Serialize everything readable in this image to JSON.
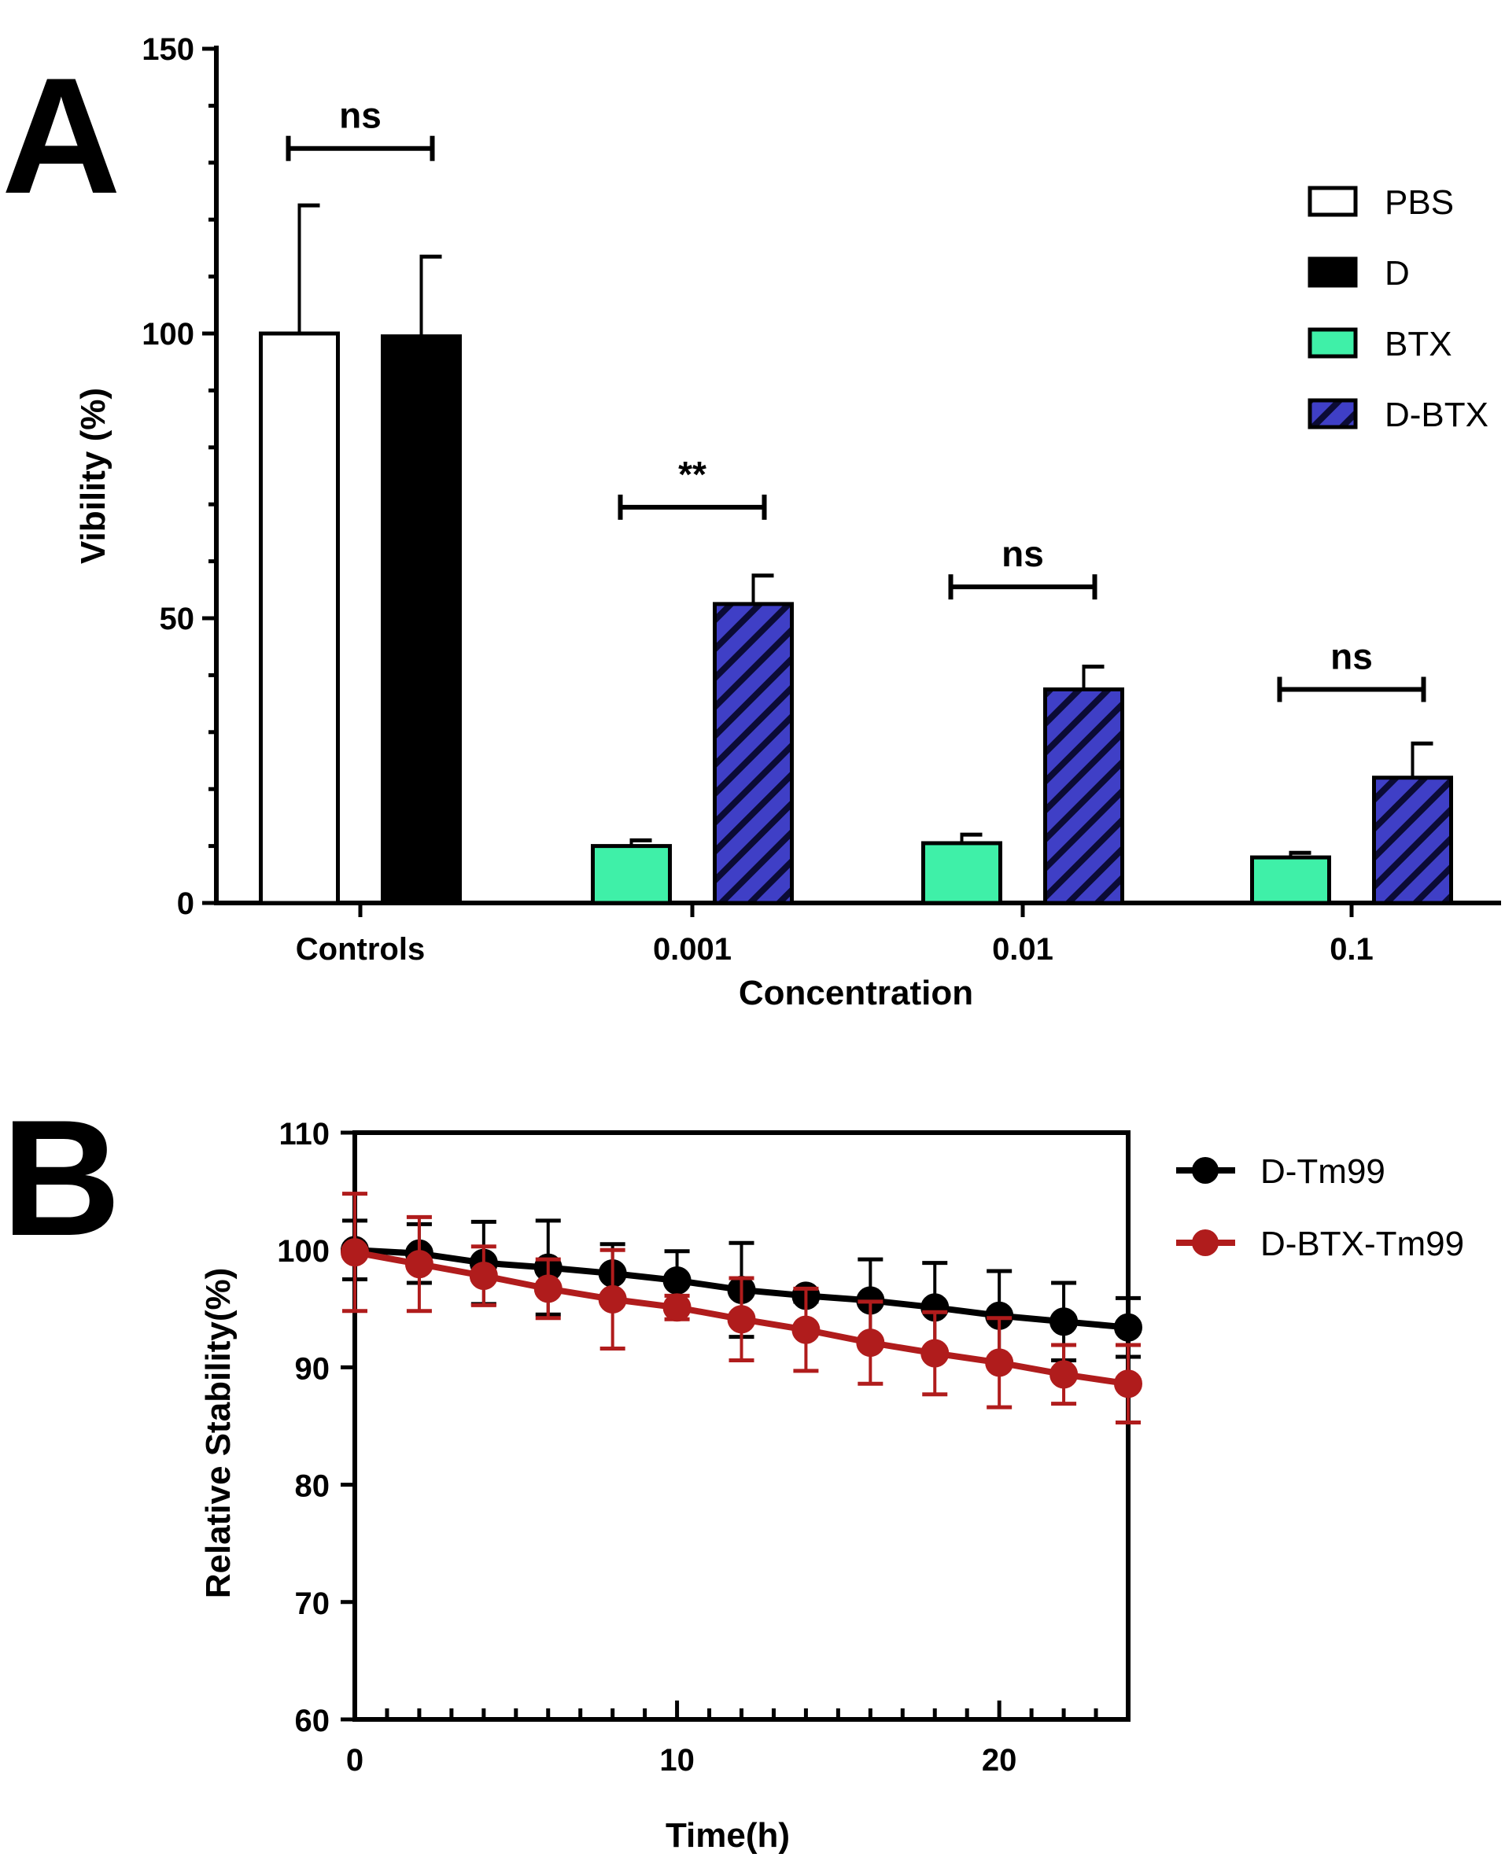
{
  "panels": {
    "a": {
      "letter": "A"
    },
    "b": {
      "letter": "B"
    }
  },
  "chart_data": [
    {
      "id": "panel-a",
      "type": "bar",
      "title": "",
      "xlabel": "Concentration",
      "ylabel": "Vibility (%)",
      "ylim": [
        0,
        150
      ],
      "yticks": [
        0,
        50,
        100,
        150
      ],
      "grid": false,
      "legend_position": "top-right",
      "groups": [
        {
          "label": "Controls",
          "bars": [
            {
              "series": "PBS",
              "value": 100,
              "error": 22.5
            },
            {
              "series": "D",
              "value": 99.5,
              "error": 14
            }
          ]
        },
        {
          "label": "0.001",
          "bars": [
            {
              "series": "BTX",
              "value": 10,
              "error": 1
            },
            {
              "series": "D-BTX",
              "value": 52.5,
              "error": 5
            }
          ]
        },
        {
          "label": "0.01",
          "bars": [
            {
              "series": "BTX",
              "value": 10.5,
              "error": 1.5
            },
            {
              "series": "D-BTX",
              "value": 37.5,
              "error": 4
            }
          ]
        },
        {
          "label": "0.1",
          "bars": [
            {
              "series": "BTX",
              "value": 8,
              "error": 0.8
            },
            {
              "series": "D-BTX",
              "value": 22,
              "error": 6
            }
          ]
        }
      ],
      "series": [
        {
          "name": "PBS",
          "fill": "#ffffff",
          "pattern": "none"
        },
        {
          "name": "D",
          "fill": "#000000",
          "pattern": "none"
        },
        {
          "name": "BTX",
          "fill": "#3ff0a8",
          "pattern": "none"
        },
        {
          "name": "D-BTX",
          "fill": "#3f3fc6",
          "pattern": "diagonal-stripes"
        }
      ],
      "significance": [
        {
          "group": "Controls",
          "label": "ns",
          "y": 132.5
        },
        {
          "group": "0.001",
          "label": "**",
          "y": 69.5
        },
        {
          "group": "0.01",
          "label": "ns",
          "y": 55.5
        },
        {
          "group": "0.1",
          "label": "ns",
          "y": 37.5
        }
      ]
    },
    {
      "id": "panel-b",
      "type": "line",
      "title": "",
      "xlabel": "Time(h)",
      "ylabel": "Relative Stability(%)",
      "xlim": [
        0,
        24
      ],
      "ylim": [
        60,
        110
      ],
      "xticks": [
        0,
        10,
        20
      ],
      "yticks": [
        60,
        70,
        80,
        90,
        100,
        110
      ],
      "grid": false,
      "legend_position": "right",
      "x": [
        0,
        2,
        4,
        6,
        8,
        10,
        12,
        14,
        16,
        18,
        20,
        22,
        24
      ],
      "series": [
        {
          "name": "D-Tm99",
          "color": "#000000",
          "values": [
            100,
            99.7,
            98.9,
            98.5,
            98,
            97.4,
            96.6,
            96.1,
            95.7,
            95.1,
            94.4,
            93.9,
            93.4
          ],
          "errors": [
            2.5,
            2.5,
            3.5,
            4,
            2.5,
            2.5,
            4,
            0.5,
            3.5,
            3.8,
            3.8,
            3.3,
            2.5
          ]
        },
        {
          "name": "D-BTX-Tm99",
          "color": "#b01c1c",
          "values": [
            99.8,
            98.8,
            97.8,
            96.7,
            95.8,
            95.1,
            94.1,
            93.2,
            92.1,
            91.2,
            90.4,
            89.4,
            88.6
          ],
          "errors": [
            5,
            4,
            2.5,
            2.5,
            4.2,
            1,
            3.5,
            3.5,
            3.5,
            3.5,
            3.8,
            2.5,
            3.3
          ]
        }
      ]
    }
  ]
}
